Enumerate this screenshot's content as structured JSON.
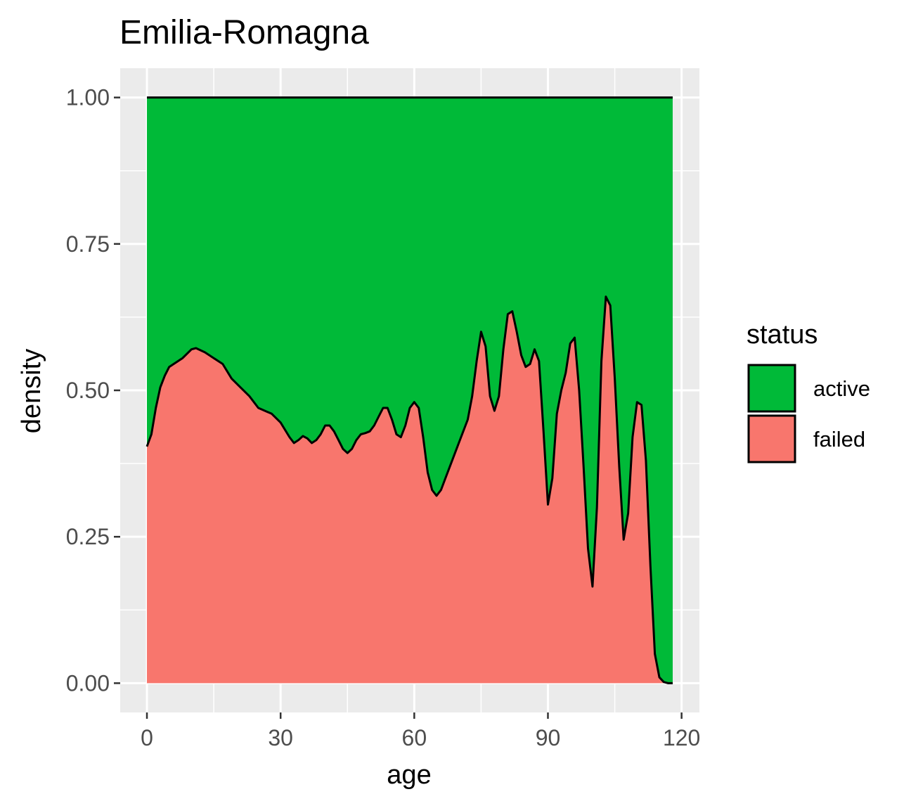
{
  "chart_data": {
    "type": "area",
    "subtype": "conditional density (stacked, filled to 1)",
    "title": "Emilia-Romagna",
    "xlabel": "age",
    "ylabel": "density",
    "xlim": [
      -6,
      124
    ],
    "ylim": [
      -0.05,
      1.05
    ],
    "x_ticks": [
      0,
      30,
      60,
      90,
      120
    ],
    "x_tick_labels": [
      "0",
      "30",
      "60",
      "90",
      "120"
    ],
    "y_ticks": [
      0,
      0.25,
      0.5,
      0.75,
      1.0
    ],
    "y_tick_labels": [
      "0.00",
      "0.25",
      "0.50",
      "0.75",
      "1.00"
    ],
    "grid": true,
    "legend": {
      "title": "status",
      "position": "right",
      "entries": [
        {
          "label": "active",
          "color": "#00BA38"
        },
        {
          "label": "failed",
          "color": "#F8766D"
        }
      ]
    },
    "colors": {
      "panel": "#EBEBEB",
      "grid": "#FFFFFF",
      "active": "#00BA38",
      "failed": "#F8766D",
      "outline": "#000000"
    },
    "series": [
      {
        "name": "failed",
        "x": [
          0,
          1,
          2,
          3,
          4,
          5,
          6,
          8,
          10,
          11,
          13,
          15,
          17,
          19,
          21,
          23,
          25,
          28,
          30,
          32,
          33,
          34,
          35,
          36,
          37,
          38,
          39,
          40,
          41,
          42,
          43,
          44,
          45,
          46,
          47,
          48,
          49,
          50,
          51,
          52,
          53,
          54,
          55,
          56,
          57,
          58,
          59,
          60,
          61,
          62,
          63,
          64,
          65,
          66,
          67,
          68,
          70,
          72,
          73,
          74,
          75,
          76,
          77,
          78,
          79,
          80,
          81,
          82,
          83,
          84,
          85,
          86,
          87,
          88,
          89,
          90,
          91,
          92,
          93,
          94,
          95,
          96,
          97,
          98,
          99,
          100,
          101,
          102,
          103,
          104,
          105,
          106,
          107,
          108,
          109,
          110,
          111,
          112,
          113,
          114,
          115,
          116,
          117,
          118
        ],
        "y": [
          0.404,
          0.425,
          0.47,
          0.505,
          0.525,
          0.54,
          0.545,
          0.555,
          0.57,
          0.572,
          0.565,
          0.555,
          0.545,
          0.52,
          0.505,
          0.49,
          0.47,
          0.46,
          0.445,
          0.42,
          0.41,
          0.415,
          0.422,
          0.418,
          0.41,
          0.415,
          0.425,
          0.44,
          0.44,
          0.43,
          0.415,
          0.4,
          0.393,
          0.4,
          0.415,
          0.425,
          0.427,
          0.43,
          0.44,
          0.455,
          0.47,
          0.47,
          0.45,
          0.425,
          0.42,
          0.44,
          0.47,
          0.48,
          0.47,
          0.42,
          0.36,
          0.33,
          0.32,
          0.33,
          0.35,
          0.37,
          0.41,
          0.45,
          0.49,
          0.55,
          0.6,
          0.575,
          0.49,
          0.465,
          0.49,
          0.57,
          0.63,
          0.635,
          0.6,
          0.56,
          0.54,
          0.545,
          0.57,
          0.55,
          0.43,
          0.305,
          0.35,
          0.46,
          0.5,
          0.53,
          0.58,
          0.59,
          0.5,
          0.37,
          0.23,
          0.165,
          0.3,
          0.55,
          0.66,
          0.645,
          0.52,
          0.37,
          0.245,
          0.29,
          0.42,
          0.48,
          0.475,
          0.38,
          0.2,
          0.05,
          0.01,
          0.002,
          0.0,
          0.0
        ]
      },
      {
        "name": "active",
        "y_top": 1.0
      }
    ]
  }
}
